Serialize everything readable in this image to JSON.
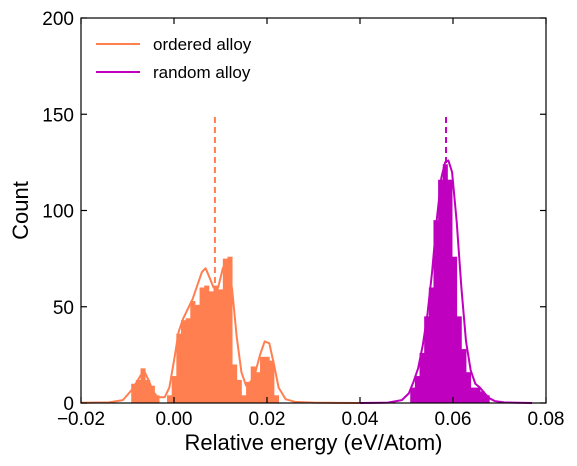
{
  "chart_data": {
    "type": "histogram",
    "title": "",
    "xlabel": "Relative energy (eV/Atom)",
    "ylabel": "Count",
    "xlim": [
      -0.02,
      0.08
    ],
    "ylim": [
      0,
      200
    ],
    "xticks": [
      -0.02,
      0.0,
      0.02,
      0.04,
      0.06,
      0.08
    ],
    "xtick_labels": [
      "−0.02",
      "0.00",
      "0.02",
      "0.04",
      "0.06",
      "0.08"
    ],
    "yticks": [
      0,
      50,
      100,
      150,
      200
    ],
    "ytick_labels": [
      "0",
      "50",
      "100",
      "150",
      "200"
    ],
    "grid": false,
    "legend_position": "upper-left",
    "series": [
      {
        "name": "ordered alloy",
        "color": "#ff7f50",
        "bins": [
          {
            "x0": -0.0092,
            "x1": -0.0082,
            "count": 10
          },
          {
            "x0": -0.0082,
            "x1": -0.0072,
            "count": 12
          },
          {
            "x0": -0.0072,
            "x1": -0.0062,
            "count": 18
          },
          {
            "x0": -0.0062,
            "x1": -0.0052,
            "count": 12
          },
          {
            "x0": -0.0052,
            "x1": -0.0042,
            "count": 9
          },
          {
            "x0": -0.0042,
            "x1": -0.0032,
            "count": 4
          },
          {
            "x0": -0.0015,
            "x1": -0.0005,
            "count": 4
          },
          {
            "x0": -0.0005,
            "x1": 0.0005,
            "count": 14
          },
          {
            "x0": 0.0005,
            "x1": 0.0015,
            "count": 36
          },
          {
            "x0": 0.0015,
            "x1": 0.0025,
            "count": 43
          },
          {
            "x0": 0.0025,
            "x1": 0.0035,
            "count": 44
          },
          {
            "x0": 0.0035,
            "x1": 0.0045,
            "count": 53
          },
          {
            "x0": 0.0045,
            "x1": 0.0055,
            "count": 51
          },
          {
            "x0": 0.0055,
            "x1": 0.0065,
            "count": 60
          },
          {
            "x0": 0.0065,
            "x1": 0.0075,
            "count": 61
          },
          {
            "x0": 0.0075,
            "x1": 0.0085,
            "count": 58
          },
          {
            "x0": 0.0085,
            "x1": 0.0095,
            "count": 61
          },
          {
            "x0": 0.0095,
            "x1": 0.0105,
            "count": 59
          },
          {
            "x0": 0.0105,
            "x1": 0.0115,
            "count": 75
          },
          {
            "x0": 0.0115,
            "x1": 0.0125,
            "count": 76
          },
          {
            "x0": 0.0125,
            "x1": 0.0135,
            "count": 20
          },
          {
            "x0": 0.0135,
            "x1": 0.0145,
            "count": 12
          },
          {
            "x0": 0.0145,
            "x1": 0.0155,
            "count": 4
          },
          {
            "x0": 0.0155,
            "x1": 0.0165,
            "count": 11
          },
          {
            "x0": 0.0165,
            "x1": 0.0175,
            "count": 19
          },
          {
            "x0": 0.0175,
            "x1": 0.0185,
            "count": 16
          },
          {
            "x0": 0.0185,
            "x1": 0.0195,
            "count": 24
          },
          {
            "x0": 0.0195,
            "x1": 0.0205,
            "count": 24
          },
          {
            "x0": 0.0205,
            "x1": 0.0215,
            "count": 22
          },
          {
            "x0": 0.0215,
            "x1": 0.0225,
            "count": 4
          }
        ],
        "kde": [
          [
            -0.02,
            0.1
          ],
          [
            -0.014,
            0.3
          ],
          [
            -0.011,
            1.5
          ],
          [
            -0.009,
            7
          ],
          [
            -0.0075,
            13
          ],
          [
            -0.0065,
            17
          ],
          [
            -0.0055,
            12
          ],
          [
            -0.0045,
            6
          ],
          [
            -0.0035,
            3
          ],
          [
            -0.002,
            3
          ],
          [
            -0.001,
            8
          ],
          [
            0.0,
            22
          ],
          [
            0.001,
            37
          ],
          [
            0.002,
            44
          ],
          [
            0.003,
            49
          ],
          [
            0.004,
            54
          ],
          [
            0.005,
            61
          ],
          [
            0.006,
            68
          ],
          [
            0.0068,
            70
          ],
          [
            0.0075,
            66
          ],
          [
            0.0085,
            60
          ],
          [
            0.0095,
            60
          ],
          [
            0.0105,
            70
          ],
          [
            0.0115,
            74
          ],
          [
            0.0125,
            59
          ],
          [
            0.0135,
            34
          ],
          [
            0.0145,
            16
          ],
          [
            0.0155,
            9
          ],
          [
            0.0165,
            11
          ],
          [
            0.0175,
            16
          ],
          [
            0.0185,
            25
          ],
          [
            0.0195,
            32
          ],
          [
            0.0205,
            31
          ],
          [
            0.0215,
            20
          ],
          [
            0.0225,
            8
          ],
          [
            0.024,
            2
          ],
          [
            0.026,
            0.6
          ],
          [
            0.03,
            0.2
          ],
          [
            0.035,
            0.05
          ],
          [
            0.04,
            0.0
          ]
        ],
        "mean": 0.0088
      },
      {
        "name": "random alloy",
        "color": "#bf00bf",
        "bins": [
          {
            "x0": 0.0508,
            "x1": 0.0518,
            "count": 8
          },
          {
            "x0": 0.0518,
            "x1": 0.0528,
            "count": 14
          },
          {
            "x0": 0.0528,
            "x1": 0.0538,
            "count": 26
          },
          {
            "x0": 0.0538,
            "x1": 0.0548,
            "count": 45
          },
          {
            "x0": 0.0548,
            "x1": 0.0558,
            "count": 60
          },
          {
            "x0": 0.0558,
            "x1": 0.0568,
            "count": 95
          },
          {
            "x0": 0.0568,
            "x1": 0.0578,
            "count": 116
          },
          {
            "x0": 0.0578,
            "x1": 0.0588,
            "count": 124
          },
          {
            "x0": 0.0588,
            "x1": 0.0598,
            "count": 116
          },
          {
            "x0": 0.0598,
            "x1": 0.0608,
            "count": 76
          },
          {
            "x0": 0.0608,
            "x1": 0.0618,
            "count": 45
          },
          {
            "x0": 0.0618,
            "x1": 0.0628,
            "count": 28
          },
          {
            "x0": 0.0628,
            "x1": 0.0638,
            "count": 16
          },
          {
            "x0": 0.0638,
            "x1": 0.0648,
            "count": 8
          },
          {
            "x0": 0.0648,
            "x1": 0.0658,
            "count": 8
          },
          {
            "x0": 0.0658,
            "x1": 0.0668,
            "count": 6
          },
          {
            "x0": 0.0668,
            "x1": 0.0678,
            "count": 4
          }
        ],
        "kde": [
          [
            0.04,
            0.0
          ],
          [
            0.046,
            0.2
          ],
          [
            0.049,
            1.5
          ],
          [
            0.0505,
            5
          ],
          [
            0.0515,
            11
          ],
          [
            0.0525,
            18
          ],
          [
            0.0535,
            30
          ],
          [
            0.0545,
            46
          ],
          [
            0.0555,
            68
          ],
          [
            0.0565,
            95
          ],
          [
            0.0575,
            117
          ],
          [
            0.0583,
            125
          ],
          [
            0.059,
            126
          ],
          [
            0.0598,
            120
          ],
          [
            0.0608,
            94
          ],
          [
            0.0618,
            60
          ],
          [
            0.0628,
            32
          ],
          [
            0.0638,
            17
          ],
          [
            0.0648,
            10
          ],
          [
            0.0658,
            8
          ],
          [
            0.0668,
            5
          ],
          [
            0.0678,
            2.5
          ],
          [
            0.069,
            1
          ],
          [
            0.071,
            0.3
          ],
          [
            0.074,
            0.1
          ],
          [
            0.077,
            0.0
          ]
        ],
        "mean": 0.0585
      }
    ],
    "mean_line_top": 150
  }
}
